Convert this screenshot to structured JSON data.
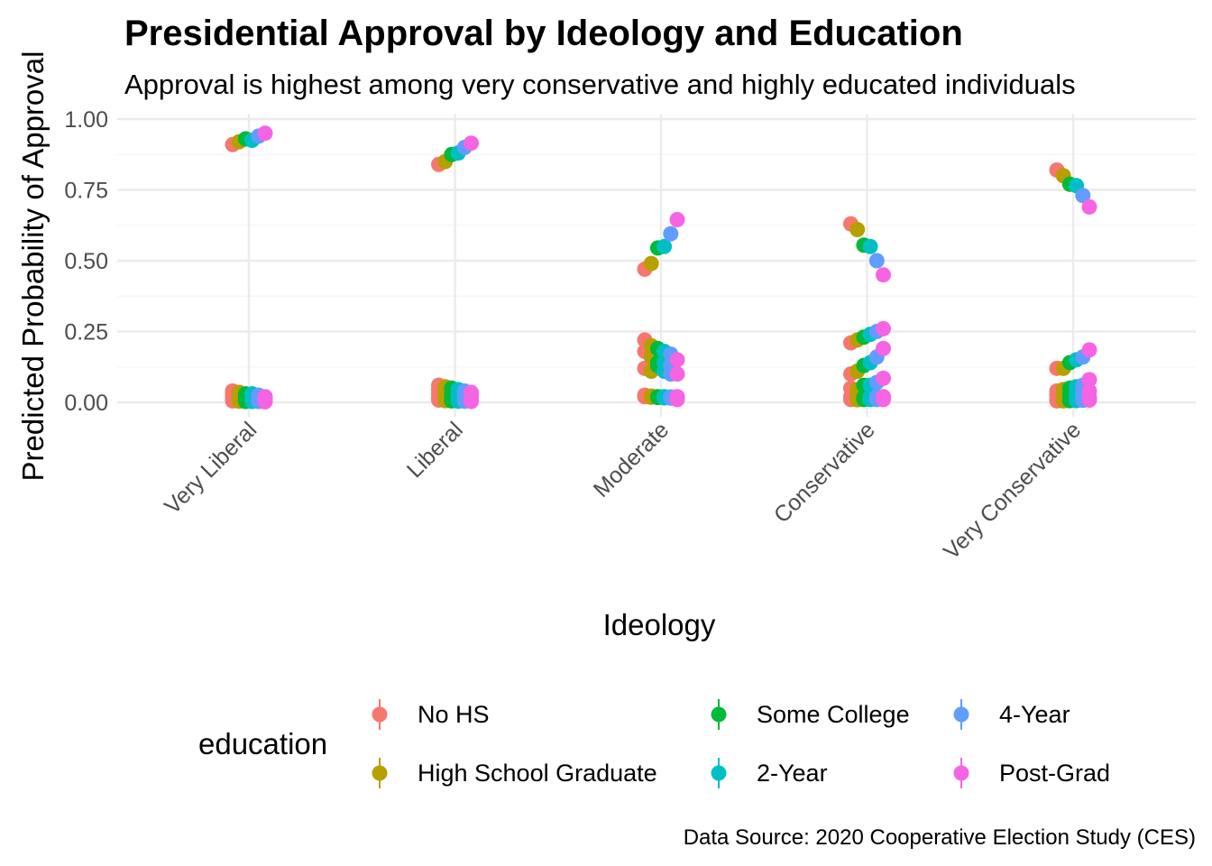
{
  "chart_data": {
    "type": "scatter",
    "title": "Presidential Approval by Ideology and Education",
    "subtitle": "Approval is highest among very conservative and highly educated individuals",
    "xlabel": "Ideology",
    "ylabel": "Predicted Probability of Approval",
    "caption": "Data Source: 2020 Cooperative Election Study (CES)",
    "categories": [
      "Very Liberal",
      "Liberal",
      "Moderate",
      "Conservative",
      "Very Conservative"
    ],
    "ylim": [
      -0.07,
      1.05
    ],
    "yticks": [
      "0.00",
      "0.25",
      "0.50",
      "0.75",
      "1.00"
    ],
    "grid": true,
    "legend": {
      "title": "education",
      "position": "bottom"
    },
    "series": [
      {
        "name": "No HS",
        "color": "#F8766D",
        "values": [
          [
            0.91,
            0.04,
            0.03,
            0.02,
            0.01,
            0.005
          ],
          [
            0.84,
            0.06,
            0.045,
            0.03,
            0.015,
            0.008
          ],
          [
            0.47,
            0.22,
            0.18,
            0.12,
            0.025,
            0.02
          ],
          [
            0.63,
            0.21,
            0.1,
            0.05,
            0.02,
            0.01
          ],
          [
            0.82,
            0.12,
            0.04,
            0.025,
            0.01,
            0.005
          ]
        ]
      },
      {
        "name": "High School Graduate",
        "color": "#B79F00",
        "values": [
          [
            0.92,
            0.035,
            0.025,
            0.015,
            0.008,
            0.004
          ],
          [
            0.85,
            0.055,
            0.04,
            0.025,
            0.012,
            0.006
          ],
          [
            0.49,
            0.2,
            0.16,
            0.11,
            0.022,
            0.018
          ],
          [
            0.61,
            0.22,
            0.11,
            0.045,
            0.018,
            0.009
          ],
          [
            0.8,
            0.12,
            0.045,
            0.025,
            0.01,
            0.005
          ]
        ]
      },
      {
        "name": "Some College",
        "color": "#00BA38",
        "values": [
          [
            0.93,
            0.03,
            0.02,
            0.012,
            0.006,
            0.003
          ],
          [
            0.875,
            0.05,
            0.035,
            0.02,
            0.01,
            0.005
          ],
          [
            0.545,
            0.19,
            0.14,
            0.13,
            0.02,
            0.017
          ],
          [
            0.555,
            0.23,
            0.13,
            0.06,
            0.018,
            0.01
          ],
          [
            0.77,
            0.14,
            0.05,
            0.03,
            0.012,
            0.006
          ]
        ]
      },
      {
        "name": "2-Year",
        "color": "#00BFC4",
        "values": [
          [
            0.925,
            0.03,
            0.02,
            0.012,
            0.006,
            0.003
          ],
          [
            0.88,
            0.045,
            0.03,
            0.018,
            0.009,
            0.004
          ],
          [
            0.55,
            0.18,
            0.14,
            0.11,
            0.02,
            0.016
          ],
          [
            0.55,
            0.24,
            0.14,
            0.06,
            0.02,
            0.01
          ],
          [
            0.765,
            0.15,
            0.055,
            0.03,
            0.012,
            0.006
          ]
        ]
      },
      {
        "name": "4-Year",
        "color": "#619CFF",
        "values": [
          [
            0.94,
            0.025,
            0.018,
            0.01,
            0.005,
            0.003
          ],
          [
            0.9,
            0.04,
            0.03,
            0.015,
            0.008,
            0.004
          ],
          [
            0.595,
            0.17,
            0.13,
            0.1,
            0.019,
            0.015
          ],
          [
            0.5,
            0.25,
            0.16,
            0.07,
            0.02,
            0.01
          ],
          [
            0.73,
            0.16,
            0.06,
            0.035,
            0.014,
            0.007
          ]
        ]
      },
      {
        "name": "Post-Grad",
        "color": "#F564E3",
        "values": [
          [
            0.95,
            0.02,
            0.015,
            0.008,
            0.004,
            0.002
          ],
          [
            0.915,
            0.035,
            0.025,
            0.012,
            0.006,
            0.003
          ],
          [
            0.645,
            0.15,
            0.1,
            0.02,
            0.015,
            0.01
          ],
          [
            0.45,
            0.26,
            0.19,
            0.085,
            0.02,
            0.01
          ],
          [
            0.69,
            0.185,
            0.08,
            0.04,
            0.016,
            0.008
          ]
        ]
      }
    ]
  }
}
